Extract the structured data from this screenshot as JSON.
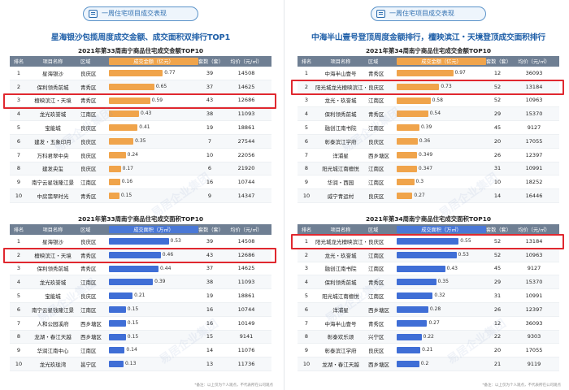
{
  "banner_text": "一周住宅项目成交表现",
  "note_text": "*备注：以上仅为个人观点，不代表所在公司观点",
  "watermark": "易居企业集团",
  "col_headers": {
    "rank": "排名",
    "name": "项目名称",
    "district": "区域",
    "units": "套数（套）",
    "price": "均价（元/㎡）"
  },
  "left": {
    "headline": "星海银沙包揽周度成交金额、成交面积双排行TOP1",
    "table1": {
      "title": "2021年第33周南宁商品住宅成交金额TOP10",
      "metric": "成交金额（亿元）",
      "highlight_rank": 3,
      "rows": [
        {
          "rank": "1",
          "name": "星海银沙",
          "district": "良庆区",
          "value": 0.77,
          "value_label": "0.77",
          "units": "39",
          "price": "14508"
        },
        {
          "rank": "2",
          "name": "保利领秀前城",
          "district": "青秀区",
          "value": 0.65,
          "value_label": "0.65",
          "units": "37",
          "price": "14625"
        },
        {
          "rank": "3",
          "name": "檀映滨江・天境",
          "district": "青秀区",
          "value": 0.59,
          "value_label": "0.59",
          "units": "43",
          "price": "12686"
        },
        {
          "rank": "4",
          "name": "龙光玖誉城",
          "district": "江南区",
          "value": 0.43,
          "value_label": "0.43",
          "units": "38",
          "price": "11093"
        },
        {
          "rank": "5",
          "name": "宝能城",
          "district": "良庆区",
          "value": 0.41,
          "value_label": "0.41",
          "units": "19",
          "price": "18861"
        },
        {
          "rank": "6",
          "name": "建发・五象印月",
          "district": "良庆区",
          "value": 0.35,
          "value_label": "0.35",
          "units": "7",
          "price": "27544"
        },
        {
          "rank": "7",
          "name": "万科君翠中央",
          "district": "良庆区",
          "value": 0.24,
          "value_label": "0.24",
          "units": "10",
          "price": "22056"
        },
        {
          "rank": "8",
          "name": "建发央玺",
          "district": "良庆区",
          "value": 0.17,
          "value_label": "0.17",
          "units": "6",
          "price": "21920"
        },
        {
          "rank": "9",
          "name": "南宁云星钱隆江景",
          "district": "江南区",
          "value": 0.16,
          "value_label": "0.16",
          "units": "16",
          "price": "10744"
        },
        {
          "rank": "10",
          "name": "中房翡翠时光",
          "district": "青秀区",
          "value": 0.15,
          "value_label": "0.15",
          "units": "9",
          "price": "14347"
        }
      ]
    },
    "table2": {
      "title": "2021年第33周南宁商品住宅成交面积TOP10",
      "metric": "成交面积（万㎡）",
      "highlight_rank": 2,
      "rows": [
        {
          "rank": "1",
          "name": "星海银沙",
          "district": "良庆区",
          "value": 0.53,
          "value_label": "0.53",
          "units": "39",
          "price": "14508"
        },
        {
          "rank": "2",
          "name": "檀映滨江・天境",
          "district": "青秀区",
          "value": 0.46,
          "value_label": "0.46",
          "units": "43",
          "price": "12686"
        },
        {
          "rank": "3",
          "name": "保利领秀前城",
          "district": "青秀区",
          "value": 0.44,
          "value_label": "0.44",
          "units": "37",
          "price": "14625"
        },
        {
          "rank": "4",
          "name": "龙光玖誉城",
          "district": "江南区",
          "value": 0.39,
          "value_label": "0.39",
          "units": "38",
          "price": "11093"
        },
        {
          "rank": "5",
          "name": "宝能城",
          "district": "良庆区",
          "value": 0.21,
          "value_label": "0.21",
          "units": "19",
          "price": "18861"
        },
        {
          "rank": "6",
          "name": "南宁云星钱隆江景",
          "district": "江南区",
          "value": 0.15,
          "value_label": "0.15",
          "units": "16",
          "price": "10744"
        },
        {
          "rank": "7",
          "name": "人和公园溪府",
          "district": "西乡塘区",
          "value": 0.15,
          "value_label": "0.15",
          "units": "16",
          "price": "10149"
        },
        {
          "rank": "8",
          "name": "龙湖・春江天越",
          "district": "西乡塘区",
          "value": 0.15,
          "value_label": "0.15",
          "units": "15",
          "price": "9141"
        },
        {
          "rank": "9",
          "name": "华润江南中心",
          "district": "江南区",
          "value": 0.14,
          "value_label": "0.14",
          "units": "14",
          "price": "11076"
        },
        {
          "rank": "10",
          "name": "龙光玖珑湾",
          "district": "邕宁区",
          "value": 0.13,
          "value_label": "0.13",
          "units": "13",
          "price": "11736"
        }
      ]
    }
  },
  "right": {
    "headline": "中海半山壹号登顶周度金额排行，檀映滨江・天境登顶成交面积排行",
    "table1": {
      "title": "2021年第34周南宁商品住宅成交金额TOP10",
      "metric": "成交金额（亿元）",
      "highlight_rank": 2,
      "rows": [
        {
          "rank": "1",
          "name": "中海半山壹号",
          "district": "青秀区",
          "value": 0.97,
          "value_label": "0.97",
          "units": "12",
          "price": "36093"
        },
        {
          "rank": "2",
          "name": "阳光城龙光檀映滨江・天境",
          "district": "良庆区",
          "value": 0.73,
          "value_label": "0.73",
          "units": "52",
          "price": "13184"
        },
        {
          "rank": "3",
          "name": "龙光・玖誉城",
          "district": "江南区",
          "value": 0.58,
          "value_label": "0.58",
          "units": "52",
          "price": "10963"
        },
        {
          "rank": "4",
          "name": "保利领秀前城",
          "district": "青秀区",
          "value": 0.54,
          "value_label": "0.54",
          "units": "29",
          "price": "15370"
        },
        {
          "rank": "5",
          "name": "融创江南书院",
          "district": "江南区",
          "value": 0.39,
          "value_label": "0.39",
          "units": "45",
          "price": "9127"
        },
        {
          "rank": "6",
          "name": "彰泰滨江学府",
          "district": "良庆区",
          "value": 0.36,
          "value_label": "0.36",
          "units": "20",
          "price": "17055"
        },
        {
          "rank": "7",
          "name": "洋浦星",
          "district": "西乡塘区",
          "value": 0.349,
          "value_label": "0.349",
          "units": "26",
          "price": "12397"
        },
        {
          "rank": "8",
          "name": "阳光城江南檀悦",
          "district": "江南区",
          "value": 0.347,
          "value_label": "0.347",
          "units": "31",
          "price": "10991"
        },
        {
          "rank": "9",
          "name": "华润・西园",
          "district": "江南区",
          "value": 0.3,
          "value_label": "0.3",
          "units": "10",
          "price": "18252"
        },
        {
          "rank": "10",
          "name": "威宁青运村",
          "district": "良庆区",
          "value": 0.27,
          "value_label": "0.27",
          "units": "14",
          "price": "16446"
        }
      ]
    },
    "table2": {
      "title": "2021年第34周南宁商品住宅成交面积TOP10",
      "metric": "成交面积（万㎡）",
      "highlight_rank": 1,
      "rows": [
        {
          "rank": "1",
          "name": "阳光城龙光檀映滨江・天境",
          "district": "良庆区",
          "value": 0.55,
          "value_label": "0.55",
          "units": "52",
          "price": "13184"
        },
        {
          "rank": "2",
          "name": "龙光・玖誉城",
          "district": "江南区",
          "value": 0.53,
          "value_label": "0.53",
          "units": "52",
          "price": "10963"
        },
        {
          "rank": "3",
          "name": "融创江南书院",
          "district": "江南区",
          "value": 0.43,
          "value_label": "0.43",
          "units": "45",
          "price": "9127"
        },
        {
          "rank": "4",
          "name": "保利领秀前城",
          "district": "青秀区",
          "value": 0.35,
          "value_label": "0.35",
          "units": "29",
          "price": "15370"
        },
        {
          "rank": "5",
          "name": "阳光城江南檀悦",
          "district": "江南区",
          "value": 0.32,
          "value_label": "0.32",
          "units": "31",
          "price": "10991"
        },
        {
          "rank": "6",
          "name": "洋浦星",
          "district": "西乡塘区",
          "value": 0.28,
          "value_label": "0.28",
          "units": "26",
          "price": "12397"
        },
        {
          "rank": "7",
          "name": "中海半山壹号",
          "district": "青秀区",
          "value": 0.27,
          "value_label": "0.27",
          "units": "12",
          "price": "36093"
        },
        {
          "rank": "8",
          "name": "彰泰欢乐颂",
          "district": "兴宁区",
          "value": 0.22,
          "value_label": "0.22",
          "units": "22",
          "price": "9303"
        },
        {
          "rank": "9",
          "name": "彰泰滨江学府",
          "district": "良庆区",
          "value": 0.21,
          "value_label": "0.21",
          "units": "20",
          "price": "17055"
        },
        {
          "rank": "10",
          "name": "龙湖・春江天越",
          "district": "西乡塘区",
          "value": 0.2,
          "value_label": "0.2",
          "units": "21",
          "price": "9119"
        }
      ]
    }
  },
  "colors": {
    "orange_bar": "#f0a44b",
    "blue_bar": "#3f6ed6",
    "header_bg": "#6f7f93",
    "highlight": "#e0282f",
    "headline": "#1f5fa8"
  }
}
